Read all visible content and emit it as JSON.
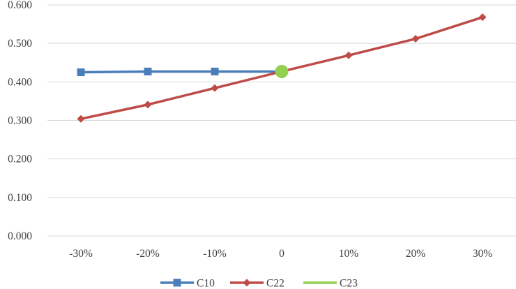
{
  "chart_data": {
    "type": "line",
    "categories": [
      "-30%",
      "-20%",
      "-10%",
      "0",
      "10%",
      "20%",
      "30%"
    ],
    "y_ticks": [
      "0.000",
      "0.100",
      "0.200",
      "0.300",
      "0.400",
      "0.500",
      "0.600"
    ],
    "ylim": [
      0,
      0.6
    ],
    "grid": "horizontal",
    "legend_position": "bottom",
    "series": [
      {
        "name": "C10",
        "values": [
          0.425,
          0.427,
          0.427,
          0.427,
          null,
          null,
          null
        ],
        "color": "#4a7ebb",
        "marker": "square"
      },
      {
        "name": "C22",
        "values": [
          0.304,
          0.341,
          0.384,
          0.427,
          0.469,
          0.512,
          0.568
        ],
        "color": "#be4b48",
        "marker": "diamond"
      },
      {
        "name": "C23",
        "values": [
          null,
          null,
          null,
          0.427,
          null,
          null,
          null
        ],
        "color": "#92d050",
        "marker": "circle"
      }
    ]
  }
}
